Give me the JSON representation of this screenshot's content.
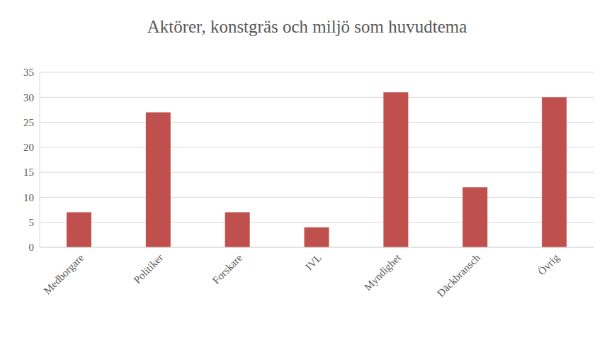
{
  "chart_data": {
    "type": "bar",
    "title": "Aktörer, konstgräs och miljö som huvudtema",
    "categories": [
      "Medborgare",
      "Politiker",
      "Forskare",
      "IVL",
      "Myndighet",
      "Däckbransch",
      "Övrig"
    ],
    "values": [
      7,
      27,
      7,
      4,
      31,
      12,
      30
    ],
    "color": "#c0504d",
    "ylim": [
      0,
      35
    ],
    "yticks": [
      0,
      5,
      10,
      15,
      20,
      25,
      30,
      35
    ],
    "grid": true
  }
}
